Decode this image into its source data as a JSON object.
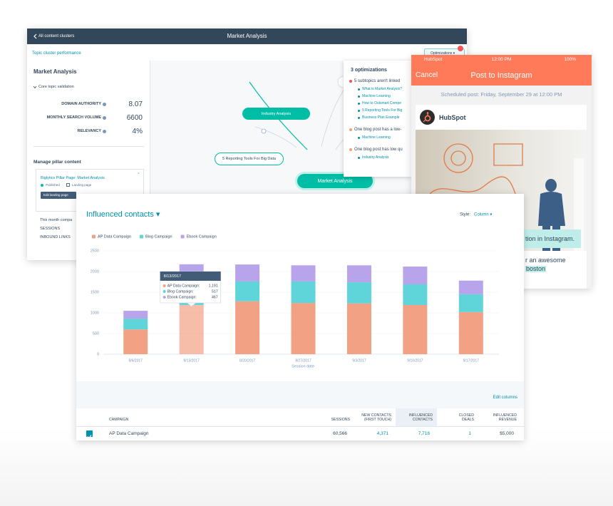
{
  "app_header": {
    "back": "All content clusters",
    "title": "Market Analysis"
  },
  "subnav": "Topic cluster performance",
  "optimizations_button": "Optimizations ▾",
  "sidebar": {
    "title": "Market Analysis",
    "section": "Core topic validation",
    "metrics": [
      {
        "label": "DOMAIN AUTHORITY",
        "value": "8.07"
      },
      {
        "label": "MONTHLY SEARCH VOLUME",
        "value": "6600"
      },
      {
        "label": "RELEVANCY",
        "value": "4%"
      }
    ],
    "pillar_heading": "Manage pillar content",
    "pillar_card": {
      "title": "Biglytics Pillar Page: Market Analysis",
      "status": "Published",
      "type": "Landing page",
      "button": "Edit landing page"
    },
    "campaign_text": "This month compa",
    "stats": [
      "SESSIONS",
      "INBOUND LINKS"
    ]
  },
  "cluster_nodes": [
    "Industry Analysis",
    "5 Reporting Tools For Big Data",
    "Market Analysis"
  ],
  "optimizations": {
    "title": "3 optimizations",
    "groups": [
      {
        "text": "5 subtopics aren't linked",
        "links": [
          "What is Market Analysis?",
          "Machine Learning",
          "How to Outsmart Compe",
          "5 Reporting Tools For Big",
          "Business Plan Example"
        ]
      },
      {
        "text": "One blog post has a low-",
        "links": [
          "Machine Learning"
        ]
      },
      {
        "text": "One blog post has low qu",
        "links": [
          "Industry Analysis"
        ]
      }
    ]
  },
  "instagram": {
    "status_carrier": "HubSpot",
    "status_time": "12:00 PM",
    "status_battery": "100%",
    "cancel": "Cancel",
    "title": "Post to Instagram",
    "scheduled": "Scheduled post: Friday, September 29 at 12:00 PM",
    "account": "HubSpot",
    "caption_overlay": "tion in Instagram.",
    "caption_lines": [
      "r an awesome",
      "boston"
    ]
  },
  "chart_data": {
    "type": "stacked_bar",
    "title": "Influenced contacts ▾",
    "style_label": "Style:",
    "style_value": "Column ▾",
    "x_label": "Session date",
    "categories": [
      "8/6/2017",
      "8/13/2017",
      "8/20/2017",
      "8/27/2017",
      "9/3/2017",
      "9/10/2017",
      "9/17/2017"
    ],
    "series": [
      {
        "name": "AP Data Campaign",
        "color": "#f2a185",
        "values": [
          600,
          1191,
          1280,
          1240,
          1230,
          1190,
          1020
        ]
      },
      {
        "name": "Blog Campaign",
        "color": "#5fd5d9",
        "values": [
          260,
          517,
          480,
          520,
          510,
          500,
          430
        ]
      },
      {
        "name": "Ebook Campaign",
        "color": "#b8a4ea",
        "values": [
          190,
          467,
          410,
          390,
          410,
          430,
          330
        ]
      }
    ],
    "ylim": [
      0,
      2500
    ],
    "yticks": [
      0,
      500,
      1000,
      1500,
      2000,
      2500
    ],
    "grid": true,
    "legend": "top-left",
    "tooltip": {
      "title": "8/13/2017",
      "rows": [
        {
          "name": "AP Data Campaign:",
          "value": "1,191"
        },
        {
          "name": "Blog Campaign:",
          "value": "517"
        },
        {
          "name": "Ebook Campaign:",
          "value": "467"
        }
      ]
    }
  },
  "table": {
    "edit_columns": "Edit columns",
    "columns": [
      "CAMPAIGN",
      "SESSIONS",
      "NEW CONTACTS (FIRST TOUCH)",
      "INFLUENCED CONTACTS",
      "CLOSED DEALS",
      "INFLUENCED REVENUE"
    ],
    "rows": [
      [
        "AP Data Campaign",
        "60,566",
        "4,371",
        "7,718",
        "1",
        "$5,000"
      ]
    ]
  }
}
